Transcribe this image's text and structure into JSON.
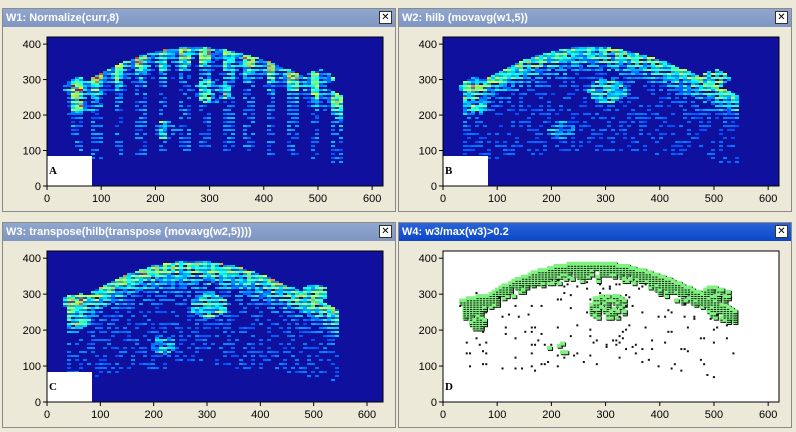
{
  "windows": [
    {
      "title": "W1: Normalize(curr,8)",
      "label": "A",
      "active": false,
      "kind": "heat",
      "seed": 11,
      "scale": 1.0,
      "stripes": "both"
    },
    {
      "title": "W2: hilb (movavg(w1,5))",
      "label": "B",
      "active": false,
      "kind": "heat",
      "seed": 23,
      "scale": 0.8,
      "stripes": "rows"
    },
    {
      "title": "W3: transpose(hilb(transpose (movavg(w2,5))))",
      "label": "C",
      "active": false,
      "kind": "heat",
      "seed": 37,
      "scale": 0.85,
      "stripes": "rows"
    },
    {
      "title": "W4: w3/max(w3)>0.2",
      "label": "D",
      "active": true,
      "kind": "mask",
      "seed": 53,
      "scale": 1.0,
      "stripes": "none"
    }
  ],
  "close_glyph": "✕",
  "colors": {
    "heat_background": "#10109e",
    "mask_fill": "#80f080",
    "mask_edge": "#111111"
  },
  "chart_data": [
    {
      "type": "heatmap",
      "xlim": [
        0,
        620
      ],
      "ylim": [
        0,
        420
      ],
      "xticks": [
        "0",
        "100",
        "200",
        "300",
        "400",
        "500",
        "600"
      ],
      "yticks": [
        "0",
        "100",
        "200",
        "300",
        "400"
      ]
    },
    {
      "type": "heatmap",
      "xlim": [
        0,
        620
      ],
      "ylim": [
        0,
        420
      ],
      "xticks": [
        "0",
        "100",
        "200",
        "300",
        "400",
        "500",
        "600"
      ],
      "yticks": [
        "0",
        "100",
        "200",
        "300",
        "400"
      ]
    },
    {
      "type": "heatmap",
      "xlim": [
        0,
        630
      ],
      "ylim": [
        0,
        420
      ],
      "xticks": [
        "0",
        "100",
        "200",
        "300",
        "400",
        "500",
        "600"
      ],
      "yticks": [
        "0",
        "100",
        "200",
        "300",
        "400"
      ]
    },
    {
      "type": "heatmap",
      "xlim": [
        0,
        620
      ],
      "ylim": [
        0,
        420
      ],
      "xticks": [
        "0",
        "100",
        "200",
        "300",
        "400",
        "500",
        "600"
      ],
      "yticks": [
        "0",
        "100",
        "200",
        "300",
        "400"
      ]
    }
  ]
}
